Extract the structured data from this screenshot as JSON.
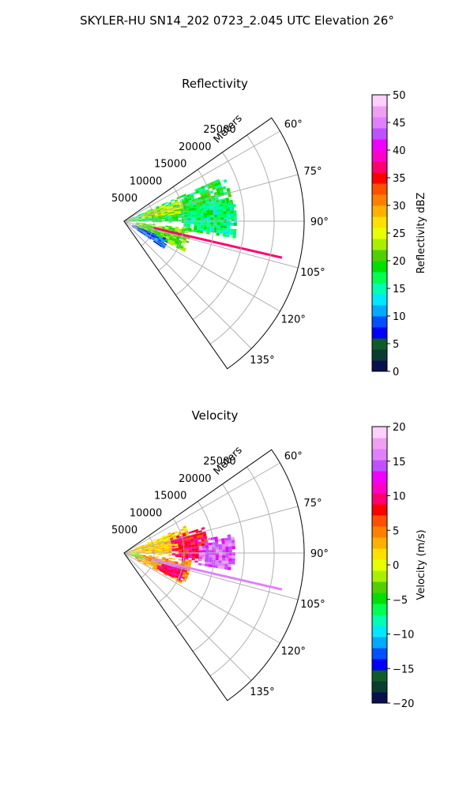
{
  "figure": {
    "title": "SKYLER-HU  SN14_202  0723_2.045 UTC Elevation 26°"
  },
  "chart_data": [
    {
      "type": "heatmap",
      "projection": "polar-sector",
      "title": "Reflectivity",
      "radial_label": "Meters",
      "radial_ticks": [
        "5000",
        "10000",
        "15000",
        "20000",
        "25000"
      ],
      "radial_range": [
        0,
        30000
      ],
      "azimuth_range": [
        55,
        145
      ],
      "azimuth_ticks": [
        "60°",
        "75°",
        "90°",
        "105°",
        "120°",
        "135°"
      ],
      "grid": true,
      "colorbar": {
        "label": "Reflectivity dBZ",
        "range": [
          0,
          50
        ],
        "ticks": [
          "0",
          "5",
          "10",
          "15",
          "20",
          "25",
          "30",
          "35",
          "40",
          "45",
          "50"
        ]
      },
      "echo_regions": [
        {
          "az_min": 66,
          "az_max": 91,
          "r_min": 800,
          "r_max": 18000,
          "value": 18
        },
        {
          "az_min": 78,
          "az_max": 98,
          "r_min": 10000,
          "r_max": 18500,
          "value": 16
        },
        {
          "az_min": 96,
          "az_max": 116,
          "r_min": 2000,
          "r_max": 11000,
          "value": 21
        },
        {
          "az_min": 68,
          "az_max": 82,
          "r_min": 3000,
          "r_max": 10000,
          "value": 24
        },
        {
          "az_min": 112,
          "az_max": 124,
          "r_min": 1500,
          "r_max": 8000,
          "value": 9
        }
      ],
      "strobe": {
        "azimuth": 103,
        "r_min": 5000,
        "r_max": 27000,
        "value": 37
      }
    },
    {
      "type": "heatmap",
      "projection": "polar-sector",
      "title": "Velocity",
      "radial_label": "Meters",
      "radial_ticks": [
        "5000",
        "10000",
        "15000",
        "20000",
        "25000"
      ],
      "radial_range": [
        0,
        30000
      ],
      "azimuth_range": [
        55,
        145
      ],
      "azimuth_ticks": [
        "60°",
        "75°",
        "90°",
        "105°",
        "120°",
        "135°"
      ],
      "grid": true,
      "colorbar": {
        "label": "Velocity (m/s)",
        "range": [
          -20,
          20
        ],
        "ticks": [
          "−20",
          "−15",
          "−10",
          "−5",
          "0",
          "5",
          "10",
          "15",
          "20"
        ]
      },
      "echo_regions": [
        {
          "az_min": 66,
          "az_max": 92,
          "r_min": 800,
          "r_max": 11000,
          "value": 2
        },
        {
          "az_min": 72,
          "az_max": 96,
          "r_min": 8000,
          "r_max": 14000,
          "value": 9
        },
        {
          "az_min": 80,
          "az_max": 99,
          "r_min": 12500,
          "r_max": 18500,
          "value": 15
        },
        {
          "az_min": 96,
          "az_max": 118,
          "r_min": 2000,
          "r_max": 11000,
          "value": 4
        },
        {
          "az_min": 104,
          "az_max": 116,
          "r_min": 6000,
          "r_max": 10500,
          "value": 10
        },
        {
          "az_min": 95,
          "az_max": 112,
          "r_min": 500,
          "r_max": 3000,
          "value": -2
        }
      ],
      "strobe": {
        "azimuth": 103,
        "r_min": 5000,
        "r_max": 27000,
        "value": 16
      }
    }
  ],
  "colormap": [
    "#08104e",
    "#0a3c32",
    "#0d5c2a",
    "#0000ff",
    "#0050ff",
    "#00aaff",
    "#00e8ff",
    "#00ffb0",
    "#00ff50",
    "#00e000",
    "#50d000",
    "#a8f000",
    "#e8ff00",
    "#ffe000",
    "#ffb000",
    "#ff8000",
    "#ff5000",
    "#ff0000",
    "#ff0070",
    "#ff00c8",
    "#f000ff",
    "#c050ff",
    "#e080ff",
    "#f0a0f0",
    "#ffd0ff"
  ]
}
